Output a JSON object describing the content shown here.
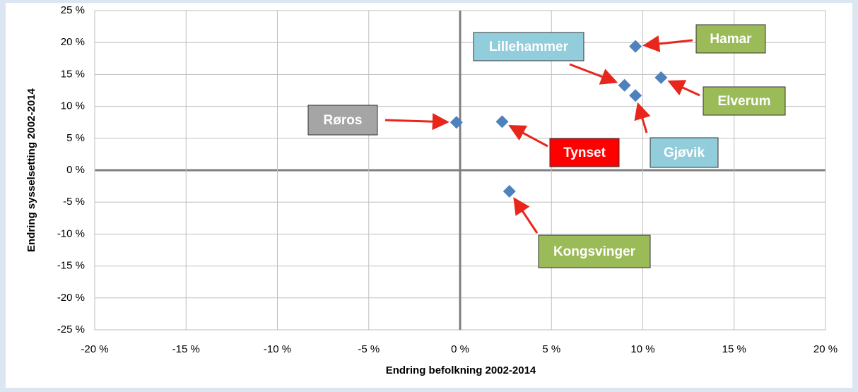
{
  "chart_data": {
    "type": "scatter",
    "xlabel": "Endring befolkning 2002-2014",
    "ylabel": "Endring sysselsetting 2002-2014",
    "labels": [
      "Røros",
      "Tynset",
      "Kongsvinger",
      "Lillehammer",
      "Gjøvik",
      "Hamar",
      "Elverum"
    ],
    "label_colors": [
      "#a5a5a5",
      "#ff0000",
      "#9bbb59",
      "#92cddc",
      "#92cddc",
      "#9bbb59",
      "#9bbb59"
    ],
    "x": [
      -0.2,
      2.3,
      2.7,
      9.0,
      9.6,
      9.6,
      11.0
    ],
    "y": [
      7.5,
      7.6,
      -3.3,
      13.3,
      11.7,
      19.4,
      14.5
    ],
    "color": "#4f81bd",
    "xlim": [
      -20,
      20
    ],
    "ylim": [
      -25,
      25
    ],
    "xticks": [
      {
        "value": -20,
        "label": "-20 %"
      },
      {
        "value": -15,
        "label": "-15 %"
      },
      {
        "value": -10,
        "label": "-10 %"
      },
      {
        "value": -5,
        "label": "-5 %"
      },
      {
        "value": 0,
        "label": "0 %"
      },
      {
        "value": 5,
        "label": "5 %"
      },
      {
        "value": 10,
        "label": "10 %"
      },
      {
        "value": 15,
        "label": "15 %"
      },
      {
        "value": 20,
        "label": "20 %"
      }
    ],
    "yticks": [
      {
        "value": -25,
        "label": "-25 %"
      },
      {
        "value": -20,
        "label": "-20 %"
      },
      {
        "value": -15,
        "label": "-15 %"
      },
      {
        "value": -10,
        "label": "-10 %"
      },
      {
        "value": -5,
        "label": "-5 %"
      },
      {
        "value": 0,
        "label": "0 %"
      },
      {
        "value": 5,
        "label": "5 %"
      },
      {
        "value": 10,
        "label": "10 %"
      },
      {
        "value": 15,
        "label": "15 %"
      },
      {
        "value": 20,
        "label": "20 %"
      },
      {
        "value": 25,
        "label": "25 %"
      }
    ],
    "grid": true
  }
}
